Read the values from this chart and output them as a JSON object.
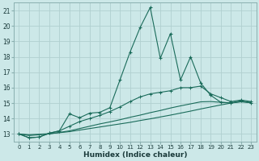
{
  "xlabel": "Humidex (Indice chaleur)",
  "background_color": "#cce8e8",
  "grid_color": "#b0d0d0",
  "line_color": "#1a6b5a",
  "xlim": [
    -0.5,
    23.5
  ],
  "ylim": [
    12.5,
    21.5
  ],
  "yticks": [
    13,
    14,
    15,
    16,
    17,
    18,
    19,
    20,
    21
  ],
  "xticks": [
    0,
    1,
    2,
    3,
    4,
    5,
    6,
    7,
    8,
    9,
    10,
    11,
    12,
    13,
    14,
    15,
    16,
    17,
    18,
    19,
    20,
    21,
    22,
    23
  ],
  "x": [
    0,
    1,
    2,
    3,
    4,
    5,
    6,
    7,
    8,
    9,
    10,
    11,
    12,
    13,
    14,
    15,
    16,
    17,
    18,
    19,
    20,
    21,
    22,
    23
  ],
  "series1": [
    13.0,
    12.75,
    12.8,
    13.05,
    13.2,
    14.3,
    14.05,
    14.35,
    14.4,
    14.7,
    16.5,
    18.3,
    19.9,
    21.2,
    17.9,
    19.5,
    16.5,
    18.0,
    16.3,
    15.5,
    15.05,
    15.0,
    15.15,
    15.0
  ],
  "series2": [
    13.0,
    12.75,
    12.8,
    13.05,
    13.2,
    13.5,
    13.8,
    14.0,
    14.2,
    14.45,
    14.75,
    15.1,
    15.4,
    15.6,
    15.7,
    15.8,
    16.0,
    16.0,
    16.1,
    15.6,
    15.35,
    15.1,
    15.2,
    15.1
  ],
  "series3": [
    13.0,
    12.9,
    12.95,
    13.0,
    13.1,
    13.2,
    13.35,
    13.5,
    13.65,
    13.78,
    13.92,
    14.08,
    14.22,
    14.38,
    14.52,
    14.68,
    14.82,
    14.95,
    15.08,
    15.1,
    15.05,
    15.02,
    15.1,
    15.05
  ],
  "series4": [
    13.0,
    12.95,
    12.98,
    13.02,
    13.08,
    13.15,
    13.25,
    13.35,
    13.45,
    13.55,
    13.65,
    13.75,
    13.87,
    13.98,
    14.1,
    14.22,
    14.35,
    14.48,
    14.62,
    14.75,
    14.88,
    15.0,
    15.08,
    15.02
  ]
}
